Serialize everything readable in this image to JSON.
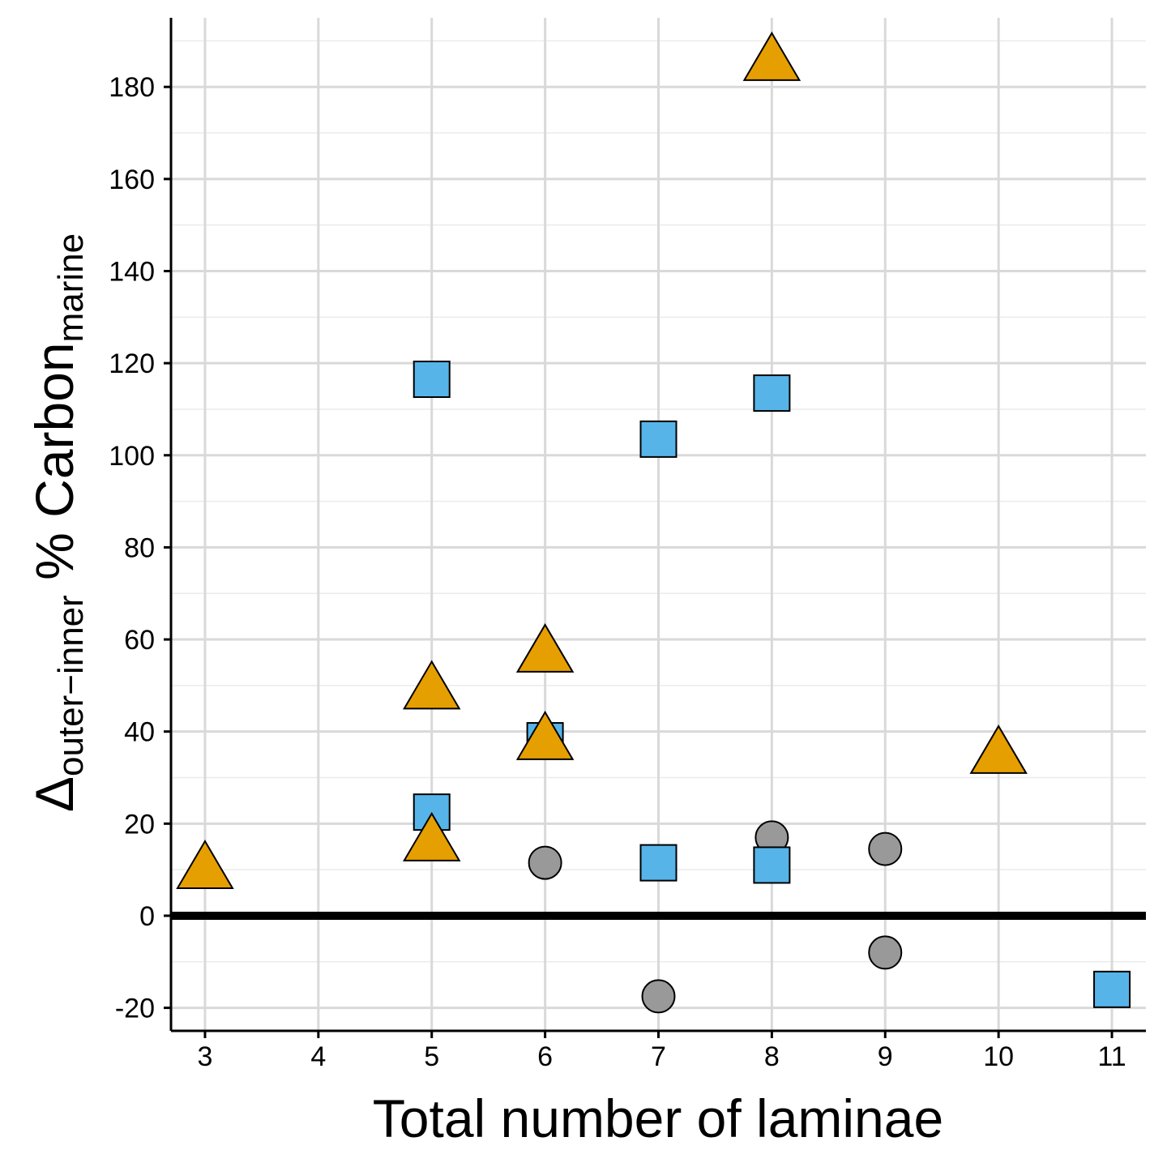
{
  "chart_data": {
    "type": "scatter",
    "xlabel": "Total number of laminae",
    "ylabel": {
      "delta": "Δ",
      "delta_sub": "outer−inner",
      "main": " % Carbon",
      "main_sub": "marine"
    },
    "xlim": [
      2.7,
      11.3
    ],
    "ylim": [
      -25,
      195
    ],
    "x_ticks": [
      3,
      4,
      5,
      6,
      7,
      8,
      9,
      10,
      11
    ],
    "y_ticks": [
      -20,
      0,
      20,
      40,
      60,
      80,
      100,
      120,
      140,
      160,
      180
    ],
    "y_minor_step": 10,
    "grid": true,
    "reference_line_y": 0,
    "series": [
      {
        "shape": "circle",
        "color": "#999999",
        "points": [
          {
            "x": 6,
            "y": 11.5
          },
          {
            "x": 7,
            "y": -17.5
          },
          {
            "x": 8,
            "y": 17
          },
          {
            "x": 9,
            "y": 14.5
          },
          {
            "x": 9,
            "y": -8
          }
        ]
      },
      {
        "shape": "square",
        "color": "#56B4E9",
        "points": [
          {
            "x": 5,
            "y": 116.5
          },
          {
            "x": 5,
            "y": 22.5
          },
          {
            "x": 6,
            "y": 38
          },
          {
            "x": 7,
            "y": 103.5
          },
          {
            "x": 7,
            "y": 11.5
          },
          {
            "x": 8,
            "y": 113.5
          },
          {
            "x": 8,
            "y": 11
          },
          {
            "x": 11,
            "y": -16
          }
        ]
      },
      {
        "shape": "triangle",
        "color": "#E69F00",
        "points": [
          {
            "x": 3,
            "y": 9.5
          },
          {
            "x": 5,
            "y": 48.5
          },
          {
            "x": 5,
            "y": 15.5
          },
          {
            "x": 6,
            "y": 56.5
          },
          {
            "x": 6,
            "y": 37.5
          },
          {
            "x": 8,
            "y": 185
          },
          {
            "x": 10,
            "y": 34.5
          }
        ]
      }
    ]
  }
}
